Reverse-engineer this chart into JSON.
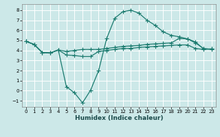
{
  "xlabel": "Humidex (Indice chaleur)",
  "bg_color": "#cce8e8",
  "grid_color": "#ffffff",
  "line_color": "#1a7a6e",
  "xlim": [
    -0.5,
    23.5
  ],
  "ylim": [
    -1.6,
    8.6
  ],
  "xticks": [
    0,
    1,
    2,
    3,
    4,
    5,
    6,
    7,
    8,
    9,
    10,
    11,
    12,
    13,
    14,
    15,
    16,
    17,
    18,
    19,
    20,
    21,
    22,
    23
  ],
  "yticks": [
    -1,
    0,
    1,
    2,
    3,
    4,
    5,
    6,
    7,
    8
  ],
  "line1_x": [
    0,
    1,
    2,
    3,
    4,
    5,
    6,
    7,
    8,
    9,
    10,
    11,
    12,
    13,
    14,
    15,
    16,
    17,
    18,
    19,
    20,
    21,
    22,
    23
  ],
  "line1_y": [
    4.9,
    4.6,
    3.8,
    3.75,
    4.05,
    3.55,
    3.5,
    3.4,
    3.4,
    3.9,
    4.0,
    4.1,
    4.2,
    4.2,
    4.3,
    4.35,
    4.4,
    4.45,
    4.5,
    4.55,
    4.55,
    4.2,
    4.1,
    4.15
  ],
  "line2_x": [
    0,
    1,
    2,
    3,
    4,
    5,
    6,
    7,
    8,
    9,
    10,
    11,
    12,
    13,
    14,
    15,
    16,
    17,
    18,
    19,
    20,
    21,
    22,
    23
  ],
  "line2_y": [
    4.9,
    4.6,
    3.8,
    3.75,
    4.05,
    0.4,
    -0.2,
    -1.2,
    0.05,
    2.0,
    5.2,
    7.2,
    7.85,
    8.0,
    7.7,
    7.0,
    6.5,
    5.85,
    5.5,
    5.35,
    5.15,
    4.75,
    4.2,
    4.1
  ],
  "line3_x": [
    0,
    1,
    2,
    3,
    4,
    5,
    6,
    7,
    8,
    9,
    10,
    11,
    12,
    13,
    14,
    15,
    16,
    17,
    18,
    19,
    20,
    21,
    22,
    23
  ],
  "line3_y": [
    4.9,
    4.6,
    3.8,
    3.75,
    4.05,
    3.9,
    4.0,
    4.1,
    4.1,
    4.1,
    4.2,
    4.3,
    4.4,
    4.45,
    4.5,
    4.6,
    4.65,
    4.7,
    4.75,
    5.2,
    5.15,
    4.85,
    4.15,
    4.15
  ]
}
